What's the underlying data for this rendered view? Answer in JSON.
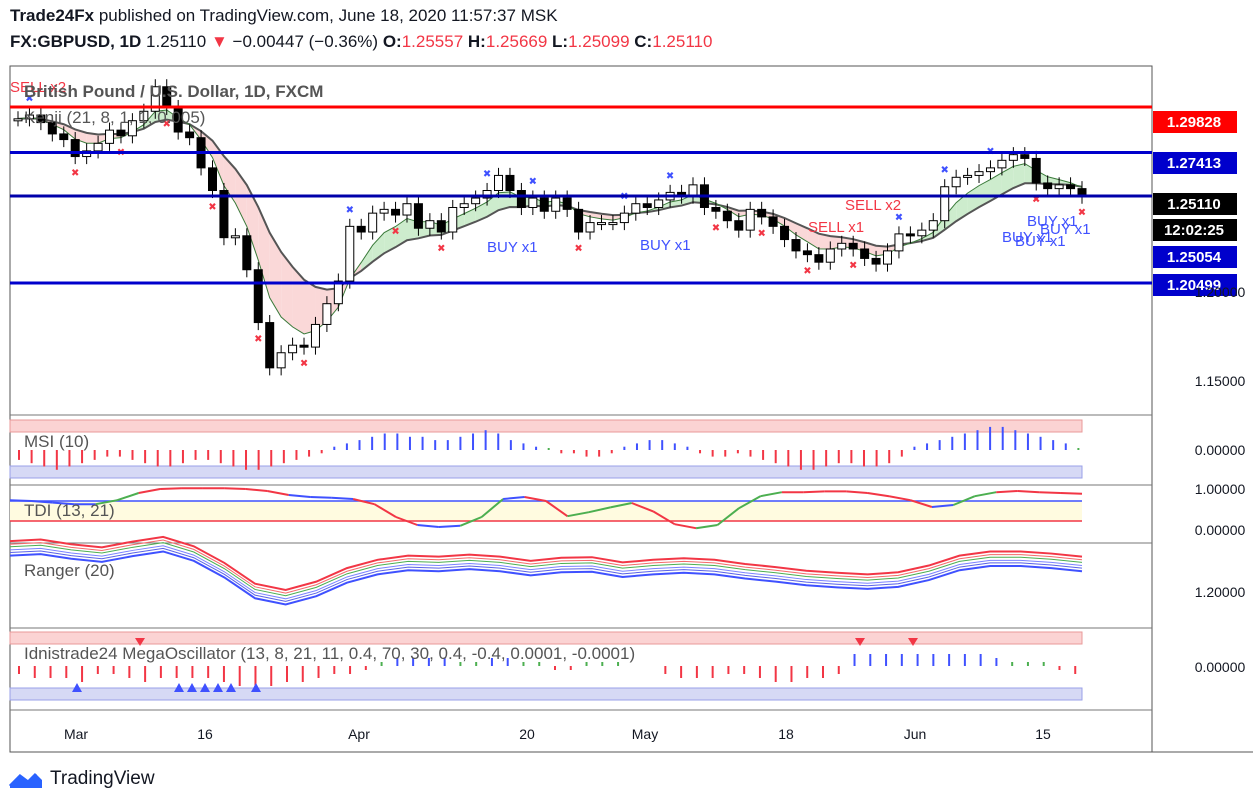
{
  "header": {
    "publisher": "Trade24Fx",
    "published_text": "published on TradingView.com, June 18, 2020 11:57:37 MSK",
    "symbol": "FX:GBPUSD, 1D",
    "last": "1.25110",
    "change": "−0.00447 (−0.36%)",
    "open_label": "O:",
    "open": "1.25557",
    "high_label": "H:",
    "high": "1.25669",
    "low_label": "L:",
    "low": "1.25099",
    "close_label": "C:",
    "close": "1.25110"
  },
  "footer": {
    "brand": "TradingView"
  },
  "colors": {
    "up": "#ffffff",
    "down": "#000000",
    "red_line": "#ff0000",
    "blue_line": "#0000cc",
    "accent_red": "#f23645",
    "accent_blue": "#3f51ff"
  },
  "chart_data": [
    {
      "type": "line",
      "title": "British Pound / U.S. Dollar, 1D, FXCM",
      "indicator": "Kenji (21, 8, 1, 1, 0.005)",
      "x_tick_labels": [
        "Mar",
        "16",
        "Apr",
        "20",
        "May",
        "18",
        "Jun",
        "15"
      ],
      "y_tick_labels": [
        "1.15000",
        "1.20000"
      ],
      "price_labels": [
        {
          "value": "1.29828",
          "color": "#ff0000"
        },
        {
          "value": "1.27413",
          "color": "#0000cc"
        },
        {
          "value": "1.25110",
          "color": "#000000"
        },
        {
          "value": "12:02:25",
          "color": "#000000"
        },
        {
          "value": "1.25054",
          "color": "#0000cc"
        },
        {
          "value": "1.20499",
          "color": "#0000cc"
        }
      ],
      "horizontal_levels": [
        1.29828,
        1.27413,
        1.2511,
        1.20499
      ],
      "ylim": [
        1.135,
        1.32
      ],
      "annotations": [
        "SELL x2",
        "BUY x1",
        "BUY x1",
        "SELL x1",
        "SELL x2",
        "BUY x1",
        "BUY x1",
        "BUY x1",
        "BUY x1"
      ],
      "closes": [
        1.292,
        1.294,
        1.29,
        1.284,
        1.281,
        1.272,
        1.275,
        1.279,
        1.286,
        1.283,
        1.291,
        1.296,
        1.309,
        1.298,
        1.285,
        1.282,
        1.266,
        1.254,
        1.229,
        1.23,
        1.212,
        1.184,
        1.16,
        1.168,
        1.172,
        1.171,
        1.183,
        1.194,
        1.206,
        1.235,
        1.232,
        1.242,
        1.244,
        1.241,
        1.247,
        1.234,
        1.238,
        1.232,
        1.245,
        1.247,
        1.25,
        1.254,
        1.262,
        1.254,
        1.245,
        1.25,
        1.243,
        1.25,
        1.244,
        1.232,
        1.237,
        1.237,
        1.237,
        1.242,
        1.247,
        1.245,
        1.249,
        1.253,
        1.251,
        1.257,
        1.245,
        1.243,
        1.238,
        1.233,
        1.244,
        1.24,
        1.235,
        1.228,
        1.222,
        1.22,
        1.216,
        1.223,
        1.226,
        1.223,
        1.218,
        1.215,
        1.222,
        1.231,
        1.23,
        1.233,
        1.238,
        1.256,
        1.261,
        1.262,
        1.264,
        1.266,
        1.27,
        1.273,
        1.271,
        1.258,
        1.255,
        1.257,
        1.255,
        1.251
      ]
    },
    {
      "type": "bar",
      "title": "MSI (10)",
      "y_tick_labels": [
        "0.00000"
      ],
      "values": [
        -3,
        -4,
        -5,
        -6,
        -5,
        -4,
        -3,
        -2,
        -2,
        -3,
        -4,
        -5,
        -5,
        -4,
        -3,
        -3,
        -4,
        -5,
        -6,
        -6,
        -5,
        -4,
        -3,
        -2,
        -1,
        1,
        2,
        3,
        4,
        5,
        5,
        4,
        4,
        3,
        3,
        4,
        5,
        6,
        5,
        3,
        2,
        1,
        0,
        -1,
        -1,
        -2,
        -2,
        -1,
        1,
        2,
        3,
        3,
        2,
        1,
        -1,
        -2,
        -2,
        -1,
        -2,
        -3,
        -4,
        -5,
        -6,
        -6,
        -5,
        -4,
        -4,
        -5,
        -5,
        -4,
        -2,
        1,
        2,
        3,
        4,
        5,
        6,
        7,
        7,
        6,
        5,
        4,
        3,
        2,
        0
      ]
    },
    {
      "type": "line",
      "title": "TDI (13, 21)",
      "y_tick_labels": [
        "1.00000",
        "0.00000"
      ],
      "values": [
        0.72,
        0.7,
        0.66,
        0.62,
        0.62,
        0.72,
        0.9,
        1.0,
        1.02,
        1.02,
        1.02,
        1.0,
        0.95,
        0.85,
        0.8,
        0.78,
        0.75,
        0.62,
        0.3,
        0.1,
        0.05,
        0.08,
        0.3,
        0.75,
        0.8,
        0.7,
        0.32,
        0.42,
        0.54,
        0.65,
        0.44,
        0.12,
        0.02,
        0.1,
        0.52,
        0.82,
        0.92,
        0.92,
        0.94,
        0.94,
        0.9,
        0.82,
        0.72,
        0.55,
        0.6,
        0.82,
        0.92,
        0.95,
        0.92,
        0.9,
        0.88
      ]
    },
    {
      "type": "line",
      "title": "Ranger (20)",
      "y_tick_labels": [
        "1.20000"
      ],
      "values": [
        1.282,
        1.285,
        1.276,
        1.27,
        1.281,
        1.29,
        1.272,
        1.24,
        1.2,
        1.188,
        1.204,
        1.23,
        1.246,
        1.254,
        1.252,
        1.256,
        1.252,
        1.244,
        1.25,
        1.251,
        1.241,
        1.246,
        1.249,
        1.246,
        1.238,
        1.232,
        1.225,
        1.221,
        1.218,
        1.222,
        1.235,
        1.254,
        1.262,
        1.262,
        1.258,
        1.252
      ]
    },
    {
      "type": "bar",
      "title": "Idnistrade24 MegaOscillator (13, 8, 21, 11, 0.4, 70, 30, 0.4, -0.4, 0.0001, -0.0001)",
      "y_tick_labels": [
        "0.00000"
      ],
      "values": [
        -2,
        -3,
        -3,
        -3,
        -4,
        -2,
        -2,
        -3,
        -4,
        -3,
        -3,
        -3,
        -3,
        -4,
        -5,
        -6,
        -5,
        -4,
        -4,
        -3,
        -2,
        -2,
        -1,
        1,
        2,
        2,
        2,
        2,
        1,
        1,
        2,
        2,
        1,
        1,
        -1,
        -1,
        1,
        1,
        1,
        0,
        0,
        -2,
        -3,
        -3,
        -3,
        -2,
        -2,
        -3,
        -4,
        -4,
        -3,
        -3,
        -2,
        3,
        3,
        3,
        3,
        3,
        3,
        3,
        3,
        3,
        2,
        1,
        1,
        1,
        -1,
        -2
      ]
    }
  ]
}
